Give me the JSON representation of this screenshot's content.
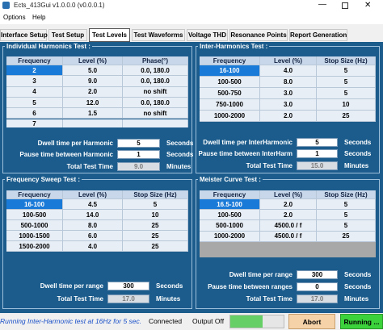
{
  "window": {
    "title": "Ects_413Gui v1.0.0.0 (v0.0.0.1)"
  },
  "menu": [
    "Options",
    "Help"
  ],
  "tabs": [
    "Interface Setup",
    "Test Setup",
    "Test Levels",
    "Test Waveforms",
    "Voltage THD",
    "Resonance Points",
    "Report Generation"
  ],
  "active_tab": 2,
  "panels": [
    {
      "title": "Individual Harmonics Test :",
      "columns": [
        "Frequency",
        "Level (%)",
        "Phase(°)"
      ],
      "rows": [
        [
          "2",
          "5.0",
          "0.0, 180.0"
        ],
        [
          "3",
          "9.0",
          "0.0, 180.0"
        ],
        [
          "4",
          "2.0",
          "no shift"
        ],
        [
          "5",
          "12.0",
          "0.0, 180.0"
        ],
        [
          "6",
          "1.5",
          "no shift"
        ],
        [
          "7"
        ]
      ],
      "fields": [
        {
          "label": "Dwell time per Harmonic",
          "value": "5",
          "unit": "Seconds"
        },
        {
          "label": "Pause time between Harmonic",
          "value": "1",
          "unit": "Seconds"
        },
        {
          "label": "Total Test Time",
          "value": "9.0",
          "unit": "Minutes"
        }
      ]
    },
    {
      "title": "Inter-Harmonics Test :",
      "columns": [
        "Frequency",
        "Level (%)",
        "Stop Size (Hz)"
      ],
      "rows": [
        [
          "16-100",
          "4.0",
          "5"
        ],
        [
          "100-500",
          "8.0",
          "5"
        ],
        [
          "500-750",
          "3.0",
          "5"
        ],
        [
          "750-1000",
          "3.0",
          "10"
        ],
        [
          "1000-2000",
          "2.0",
          "25"
        ]
      ],
      "fields": [
        {
          "label": "Dwell time per InterHarmonic",
          "value": "5",
          "unit": "Seconds"
        },
        {
          "label": "Pause time between InterHarm",
          "value": "1",
          "unit": "Seconds"
        },
        {
          "label": "Total Test Time",
          "value": "15.0",
          "unit": "Minutes"
        }
      ]
    },
    {
      "title": "Frequency Sweep Test :",
      "columns": [
        "Frequency",
        "Level (%)",
        "Stop Size (Hz)"
      ],
      "rows": [
        [
          "16-100",
          "4.5",
          "5"
        ],
        [
          "100-500",
          "14.0",
          "10"
        ],
        [
          "500-1000",
          "8.0",
          "25"
        ],
        [
          "1000-1500",
          "6.0",
          "25"
        ],
        [
          "1500-2000",
          "4.0",
          "25"
        ]
      ],
      "fields": [
        {
          "label": "Dwell time per range",
          "value": "300",
          "unit": "Seconds"
        },
        {
          "label": "Total Test Time",
          "value": "17.0",
          "unit": "Minutes"
        }
      ]
    },
    {
      "title": "Meister Curve Test :",
      "columns": [
        "Frequency",
        "Level (%)",
        "Stop Size (Hz)"
      ],
      "rows": [
        [
          "16.5-100",
          "2.0",
          "5"
        ],
        [
          "100-500",
          "2.0",
          "5"
        ],
        [
          "500-1000",
          "4500.0 / f",
          "5"
        ],
        [
          "1000-2000",
          "4500.0 / f",
          "25"
        ]
      ],
      "fields": [
        {
          "label": "Dwell time per range",
          "value": "300",
          "unit": "Seconds"
        },
        {
          "label": "Pause time between ranges",
          "value": "0",
          "unit": "Seconds"
        },
        {
          "label": "Total Test Time",
          "value": "17.0",
          "unit": "Minutes"
        }
      ]
    }
  ],
  "status": {
    "message": "Running Inter-Harmonic test at 16Hz for 5 sec.",
    "connection": "Connected",
    "output": "Output Off",
    "abort": "Abort",
    "running": "Running ..."
  }
}
